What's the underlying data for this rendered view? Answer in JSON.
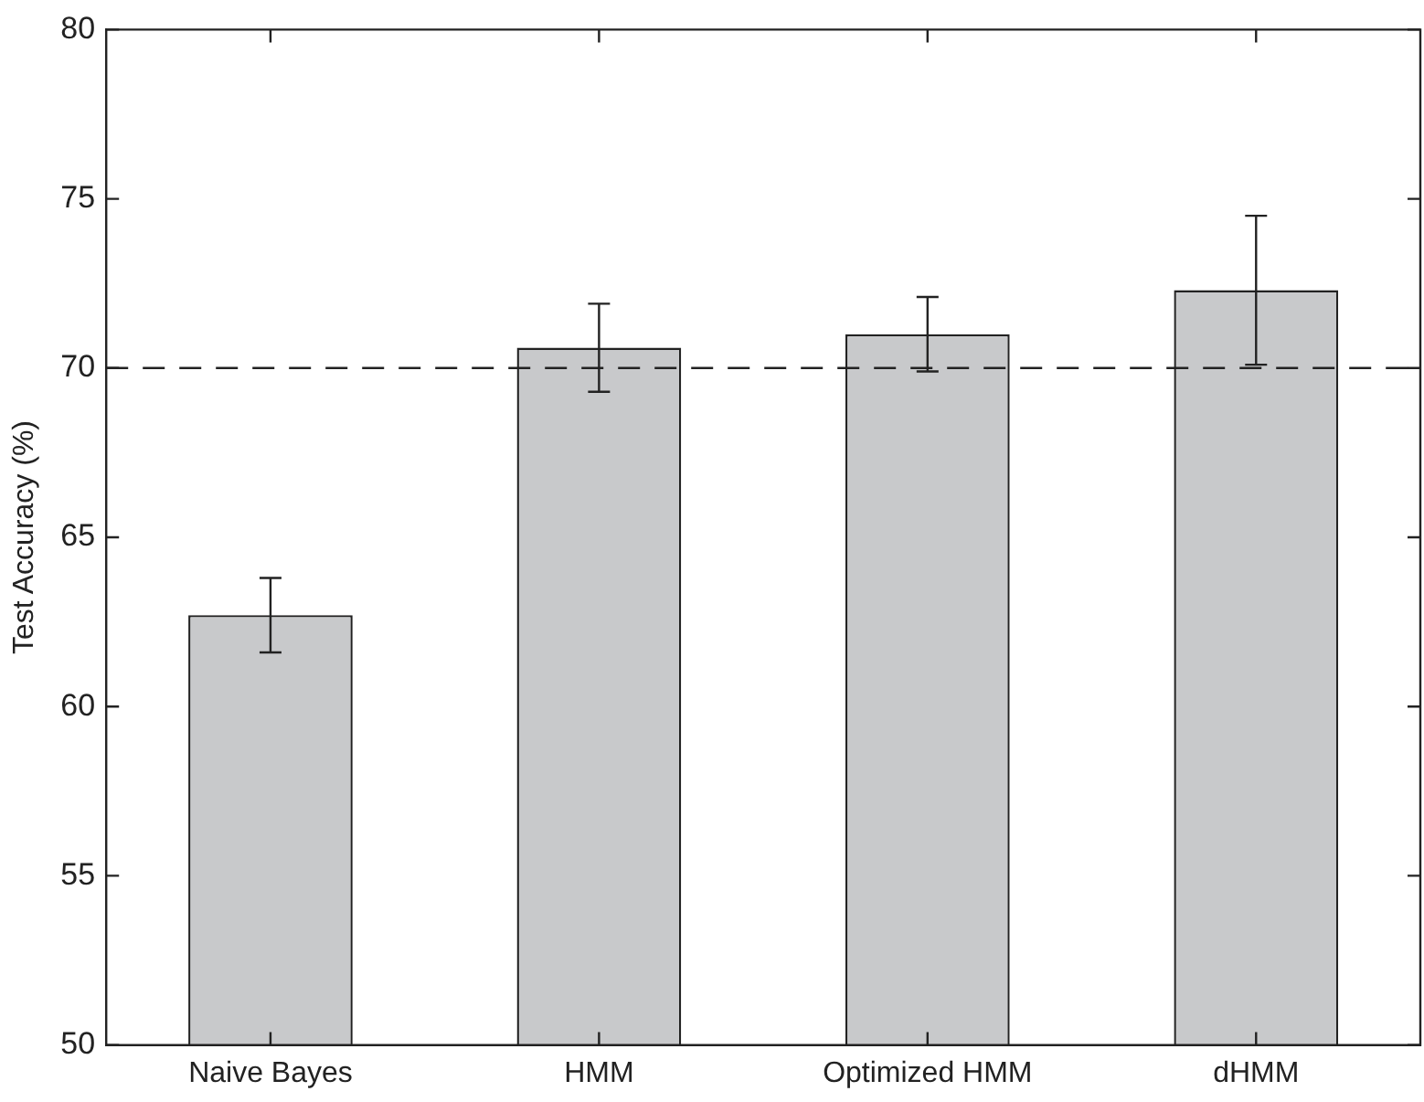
{
  "chart_data": {
    "type": "bar",
    "ylabel": "Test Accuracy (%)",
    "categories": [
      "Naive Bayes",
      "HMM",
      "Optimized HMM",
      "dHMM"
    ],
    "values": [
      62.7,
      70.6,
      71.0,
      72.3
    ],
    "errors": [
      [
        61.6,
        63.8
      ],
      [
        69.3,
        71.9
      ],
      [
        69.9,
        72.1
      ],
      [
        70.1,
        74.5
      ]
    ],
    "color": "#c8c9cb",
    "ylim": [
      50,
      80
    ],
    "yticks": [
      50,
      55,
      60,
      65,
      70,
      75,
      80
    ],
    "grid": false,
    "legend": false,
    "ref_lines": [
      {
        "axis": "y",
        "value": 70,
        "line_style": "dashed",
        "color": "#222222"
      }
    ]
  }
}
